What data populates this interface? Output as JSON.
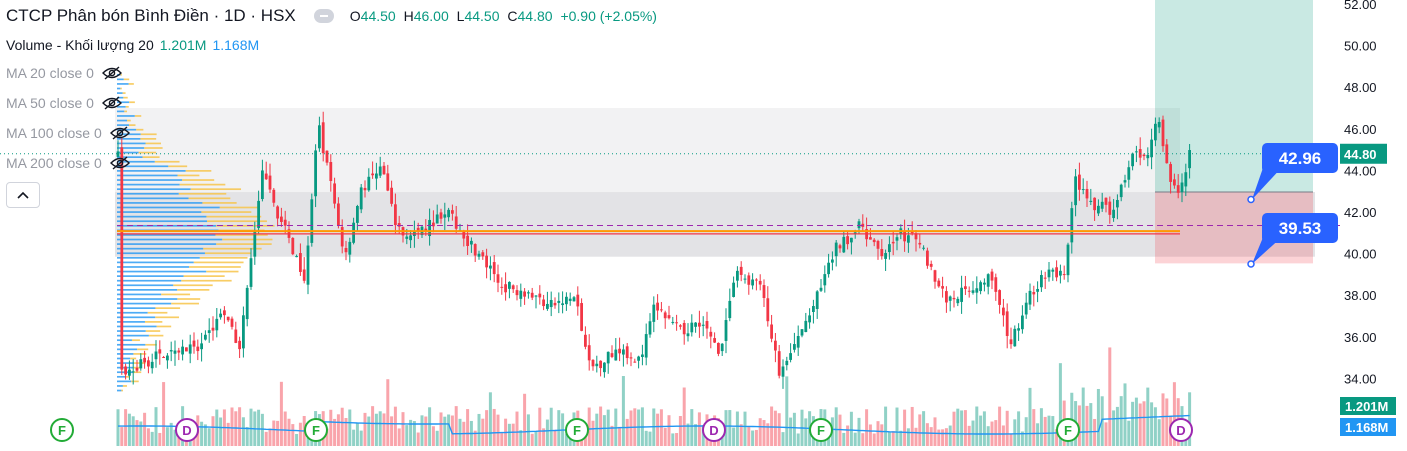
{
  "legend": {
    "title": "CTCP Phân bón Bình Điền · 1D · HSX",
    "ohlc": {
      "o_label": "O",
      "o": "44.50",
      "h_label": "H",
      "h": "46.00",
      "l_label": "L",
      "l": "44.50",
      "c_label": "C",
      "c": "44.80",
      "change": "+0.90 (+2.05%)"
    },
    "volume_label": "Volume - Khối lượng 20",
    "volume_value": "1.201M",
    "volume_ma": "1.168M",
    "ma": [
      {
        "label": "MA 20 close 0"
      },
      {
        "label": "MA 50 close 0"
      },
      {
        "label": "MA 100 close 0"
      },
      {
        "label": "MA 200 close 0"
      }
    ],
    "collapse_icon": "chevron-up-icon"
  },
  "chart_data": {
    "type": "candlestick",
    "y_axis": {
      "ticks": [
        "52.00",
        "50.00",
        "48.00",
        "46.00",
        "44.00",
        "42.00",
        "40.00",
        "38.00",
        "36.00",
        "34.00"
      ],
      "min": 32.6,
      "max": 52.2
    },
    "last_price": "44.80",
    "last_volume": "1.201M",
    "volume_ma_label": "1.168M",
    "position_target": "42.96",
    "position_stop": "39.53",
    "markers": [
      "F",
      "D",
      "F",
      "F",
      "D",
      "F",
      "F",
      "D"
    ],
    "colors": {
      "up": "#089981",
      "down": "#f23645",
      "volume_ma": "#2196f3",
      "profile_blue": "#2196f3",
      "profile_yellow": "#f7c44a",
      "poc": "#ff9800",
      "target_box": "#089981",
      "stop_box": "#f23645"
    }
  }
}
